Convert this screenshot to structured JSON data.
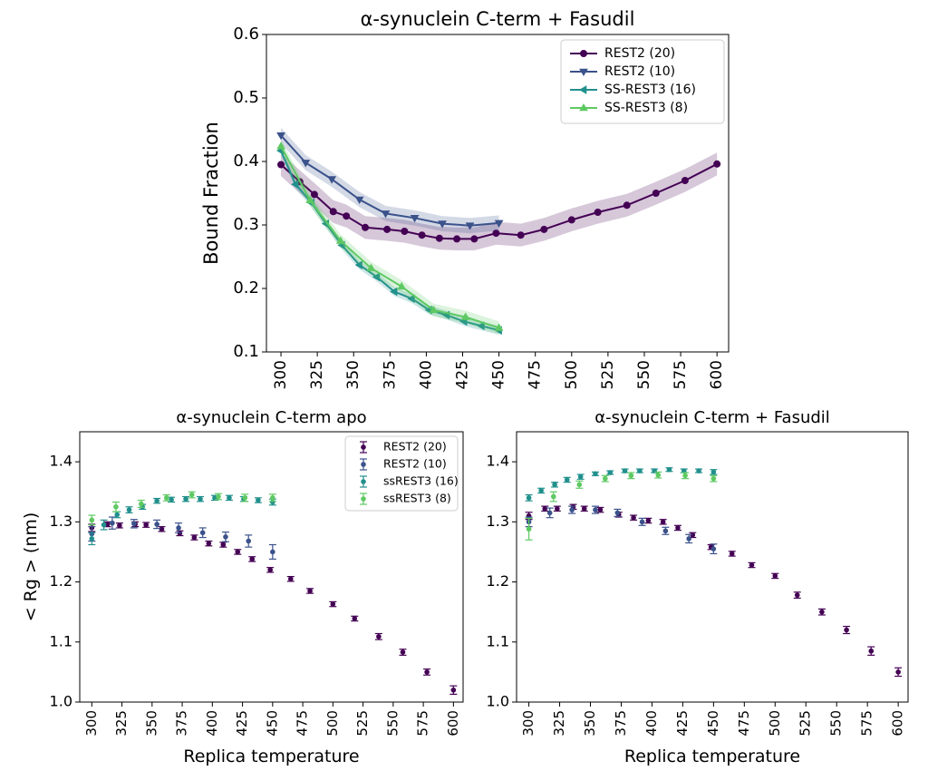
{
  "chart_data": [
    {
      "type": "line",
      "title": "α-synuclein C-term + Fasudil",
      "xlabel": "",
      "ylabel": "Bound Fraction",
      "xlim": [
        290,
        608
      ],
      "ylim": [
        0.1,
        0.6
      ],
      "xticks": [
        300,
        325,
        350,
        375,
        400,
        425,
        450,
        475,
        500,
        525,
        550,
        575,
        600
      ],
      "yticks": [
        0.1,
        0.2,
        0.3,
        0.4,
        0.5,
        0.6
      ],
      "legend": "top-right",
      "series": [
        {
          "name": "REST2 (20)",
          "marker": "circle",
          "color": "#440154",
          "x": [
            300,
            313,
            323,
            336,
            345,
            358,
            373,
            385,
            397,
            409,
            421,
            433,
            448,
            465,
            481,
            500,
            518,
            538,
            558,
            578,
            600
          ],
          "y": [
            0.395,
            0.368,
            0.348,
            0.321,
            0.314,
            0.296,
            0.293,
            0.29,
            0.284,
            0.279,
            0.278,
            0.278,
            0.287,
            0.284,
            0.293,
            0.308,
            0.32,
            0.331,
            0.35,
            0.37,
            0.396
          ],
          "band": 0.018
        },
        {
          "name": "REST2 (10)",
          "marker": "triangle-down",
          "color": "#3b528b",
          "x": [
            300,
            317,
            335,
            354,
            372,
            392,
            411,
            430,
            450
          ],
          "y": [
            0.441,
            0.398,
            0.372,
            0.34,
            0.318,
            0.311,
            0.302,
            0.299,
            0.303
          ],
          "band": 0.012
        },
        {
          "name": "SS-REST3 (16)",
          "marker": "triangle-left",
          "color": "#21908d",
          "x": [
            300,
            310,
            321,
            331,
            342,
            354,
            366,
            378,
            390,
            402,
            414,
            426,
            438,
            450
          ],
          "y": [
            0.417,
            0.364,
            0.335,
            0.302,
            0.268,
            0.237,
            0.218,
            0.195,
            0.184,
            0.166,
            0.158,
            0.148,
            0.141,
            0.134
          ],
          "band": 0.007
        },
        {
          "name": "SS-REST3 (8)",
          "marker": "triangle-up",
          "color": "#5ec962",
          "x": [
            300,
            320,
            341,
            362,
            383,
            405,
            427,
            450
          ],
          "y": [
            0.424,
            0.339,
            0.275,
            0.232,
            0.203,
            0.166,
            0.155,
            0.138
          ],
          "band": 0.01
        }
      ]
    },
    {
      "type": "scatter",
      "title": "α-synuclein C-term apo",
      "xlabel": "Replica temperature",
      "ylabel": "< Rg > (nm)",
      "xlim": [
        290,
        608
      ],
      "ylim": [
        1.0,
        1.45
      ],
      "xticks": [
        300,
        325,
        350,
        375,
        400,
        425,
        450,
        475,
        500,
        525,
        550,
        575,
        600
      ],
      "yticks": [
        1.0,
        1.1,
        1.2,
        1.3,
        1.4
      ],
      "legend": "top-right",
      "series": [
        {
          "name": "REST2 (20)",
          "color": "#440154",
          "x": [
            300,
            313,
            323,
            336,
            345,
            358,
            373,
            385,
            397,
            409,
            421,
            433,
            448,
            465,
            481,
            500,
            518,
            538,
            558,
            578,
            600
          ],
          "y": [
            1.29,
            1.296,
            1.294,
            1.296,
            1.295,
            1.288,
            1.281,
            1.274,
            1.264,
            1.262,
            1.25,
            1.238,
            1.22,
            1.205,
            1.185,
            1.163,
            1.139,
            1.109,
            1.083,
            1.05,
            1.02
          ],
          "err": [
            0.006,
            0.004,
            0.004,
            0.004,
            0.004,
            0.004,
            0.004,
            0.004,
            0.004,
            0.004,
            0.004,
            0.004,
            0.004,
            0.004,
            0.004,
            0.004,
            0.004,
            0.005,
            0.005,
            0.005,
            0.007
          ]
        },
        {
          "name": "REST2 (10)",
          "color": "#3b528b",
          "x": [
            300,
            317,
            335,
            354,
            372,
            392,
            411,
            430,
            450
          ],
          "y": [
            1.28,
            1.298,
            1.297,
            1.296,
            1.29,
            1.282,
            1.275,
            1.268,
            1.25
          ],
          "err": [
            0.012,
            0.01,
            0.007,
            0.007,
            0.008,
            0.008,
            0.008,
            0.01,
            0.012
          ]
        },
        {
          "name": "ssREST3 (16)",
          "color": "#21908d",
          "x": [
            300,
            310,
            321,
            331,
            342,
            354,
            366,
            378,
            390,
            402,
            414,
            426,
            438,
            450
          ],
          "y": [
            1.272,
            1.295,
            1.312,
            1.32,
            1.325,
            1.335,
            1.337,
            1.338,
            1.338,
            1.34,
            1.34,
            1.338,
            1.336,
            1.333
          ],
          "err": [
            0.01,
            0.008,
            0.005,
            0.005,
            0.004,
            0.004,
            0.004,
            0.004,
            0.004,
            0.004,
            0.004,
            0.004,
            0.004,
            0.005
          ]
        },
        {
          "name": "ssREST3 (8)",
          "color": "#5ec962",
          "x": [
            300,
            320,
            341,
            362,
            383,
            405,
            427,
            450
          ],
          "y": [
            1.303,
            1.325,
            1.33,
            1.34,
            1.345,
            1.342,
            1.34,
            1.34
          ],
          "err": [
            0.008,
            0.008,
            0.006,
            0.005,
            0.005,
            0.005,
            0.006,
            0.006
          ]
        }
      ]
    },
    {
      "type": "scatter",
      "title": "α-synuclein C-term + Fasudil",
      "xlabel": "Replica temperature",
      "ylabel": "",
      "xlim": [
        290,
        608
      ],
      "ylim": [
        1.0,
        1.45
      ],
      "xticks": [
        300,
        325,
        350,
        375,
        400,
        425,
        450,
        475,
        500,
        525,
        550,
        575,
        600
      ],
      "yticks": [
        1.0,
        1.1,
        1.2,
        1.3,
        1.4
      ],
      "series": [
        {
          "name": "REST2 (20)",
          "color": "#440154",
          "x": [
            300,
            313,
            323,
            336,
            345,
            358,
            373,
            385,
            397,
            409,
            421,
            433,
            448,
            465,
            481,
            500,
            518,
            538,
            558,
            578,
            600
          ],
          "y": [
            1.31,
            1.322,
            1.322,
            1.325,
            1.322,
            1.32,
            1.312,
            1.307,
            1.302,
            1.3,
            1.29,
            1.278,
            1.258,
            1.247,
            1.228,
            1.21,
            1.178,
            1.15,
            1.12,
            1.085,
            1.05
          ],
          "err": [
            0.006,
            0.004,
            0.004,
            0.004,
            0.004,
            0.004,
            0.004,
            0.004,
            0.004,
            0.004,
            0.004,
            0.004,
            0.004,
            0.004,
            0.004,
            0.004,
            0.005,
            0.005,
            0.006,
            0.007,
            0.007
          ]
        },
        {
          "name": "REST2 (10)",
          "color": "#3b528b",
          "x": [
            300,
            317,
            335,
            354,
            372,
            392,
            411,
            430,
            450
          ],
          "y": [
            1.3,
            1.315,
            1.32,
            1.32,
            1.315,
            1.3,
            1.285,
            1.272,
            1.255
          ],
          "err": [
            0.008,
            0.008,
            0.006,
            0.006,
            0.006,
            0.006,
            0.006,
            0.007,
            0.008
          ]
        },
        {
          "name": "ssREST3 (16)",
          "color": "#21908d",
          "x": [
            300,
            310,
            321,
            331,
            342,
            354,
            366,
            378,
            390,
            402,
            414,
            426,
            438,
            450
          ],
          "y": [
            1.34,
            1.352,
            1.362,
            1.37,
            1.375,
            1.38,
            1.382,
            1.385,
            1.385,
            1.385,
            1.387,
            1.385,
            1.385,
            1.383
          ],
          "err": [
            0.005,
            0.004,
            0.004,
            0.004,
            0.004,
            0.003,
            0.003,
            0.003,
            0.003,
            0.003,
            0.003,
            0.003,
            0.003,
            0.004
          ]
        },
        {
          "name": "ssREST3 (8)",
          "color": "#5ec962",
          "x": [
            300,
            320,
            341,
            362,
            383,
            405,
            427,
            450
          ],
          "y": [
            1.288,
            1.342,
            1.362,
            1.372,
            1.377,
            1.378,
            1.377,
            1.372
          ],
          "err": [
            0.018,
            0.008,
            0.006,
            0.005,
            0.005,
            0.005,
            0.005,
            0.005
          ]
        }
      ]
    }
  ]
}
